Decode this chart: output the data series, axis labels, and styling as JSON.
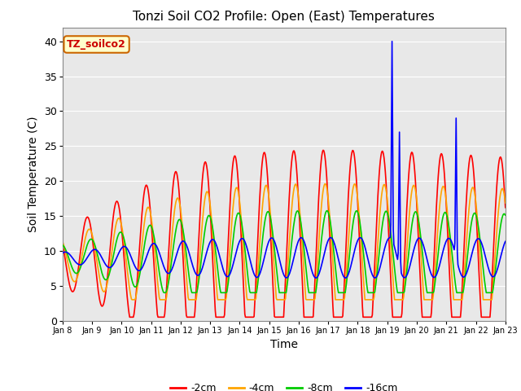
{
  "title": "Tonzi Soil CO2 Profile: Open (East) Temperatures",
  "xlabel": "Time",
  "ylabel": "Soil Temperature (C)",
  "ylim": [
    0,
    42
  ],
  "yticks": [
    0,
    5,
    10,
    15,
    20,
    25,
    30,
    35,
    40
  ],
  "colors": {
    "-2cm": "#ff0000",
    "-4cm": "#ffa500",
    "-8cm": "#00cc00",
    "-16cm": "#0000ff"
  },
  "annotation_label": "TZ_soilco2",
  "fig_bg_color": "#ffffff",
  "plot_bg_color": "#e8e8e8",
  "tick_labels": [
    "Jan 8",
    "Jan 9",
    "Jan 10",
    "Jan 11",
    "Jan 12",
    "Jan 13",
    "Jan 14",
    "Jan 15",
    "Jan 16",
    "Jan 17",
    "Jan 18",
    "Jan 19",
    "Jan 20",
    "Jan 21",
    "Jan 22",
    "Jan 23"
  ],
  "line_width": 1.2,
  "grid_color": "#ffffff"
}
